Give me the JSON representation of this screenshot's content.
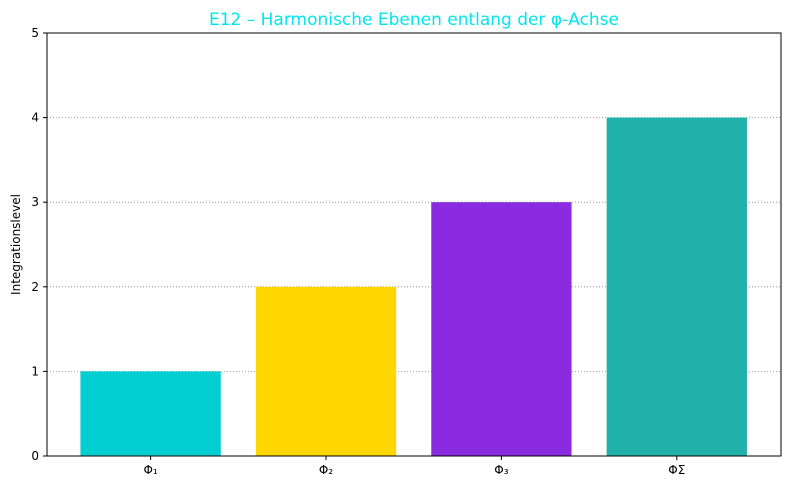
{
  "chart_data": {
    "type": "bar",
    "title": "E12 – Harmonische Ebenen entlang der φ-Achse",
    "title_color": "#00e5ee",
    "xlabel": "",
    "ylabel": "Integrationslevel",
    "ylim": [
      0,
      5
    ],
    "yticks": [
      "0",
      "1",
      "2",
      "3",
      "4",
      "5"
    ],
    "grid": "horizontal dotted",
    "categories": [
      "Φ₁",
      "Φ₂",
      "Φ₃",
      "ΦΣ"
    ],
    "values": [
      1,
      2,
      3,
      4
    ],
    "colors": [
      "#00ced1",
      "#ffd700",
      "#8a2be2",
      "#20b2aa"
    ]
  }
}
